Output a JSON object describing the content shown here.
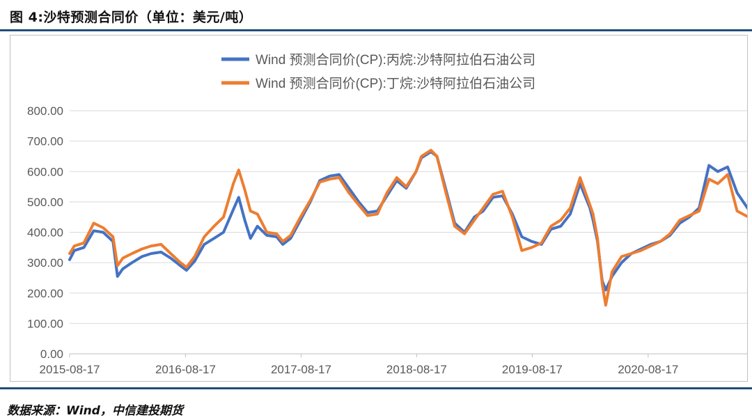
{
  "figure": {
    "title": "图 4:沙特预测合同价（单位：美元/吨）",
    "source": "数据来源：Wind，中信建投期货"
  },
  "colors": {
    "propane": "#4472c4",
    "butane": "#ed7d31",
    "grid": "#d9d9d9",
    "axis_text": "#595959",
    "rule": "#1f4e79"
  },
  "chart_data": {
    "type": "line",
    "title": "",
    "xlabel": "",
    "ylabel": "",
    "ylim": [
      0,
      800
    ],
    "yticks": [
      "800.00",
      "700.00",
      "600.00",
      "500.00",
      "400.00",
      "300.00",
      "200.00",
      "100.00",
      "0.00"
    ],
    "xticks": [
      "2015-08-17",
      "2016-08-17",
      "2017-08-17",
      "2018-08-17",
      "2019-08-17",
      "2020-08-17"
    ],
    "x_range": [
      "2015-08-17",
      "2021-06-30"
    ],
    "grid": "horizontal",
    "legend_position": "top",
    "series": [
      {
        "name": "Wind 预测合同价(CP):丙烷:沙特阿拉伯石油公司",
        "color": "#4472c4",
        "points": [
          [
            "2015-08-17",
            310
          ],
          [
            "2015-09-01",
            340
          ],
          [
            "2015-10-01",
            350
          ],
          [
            "2015-11-01",
            405
          ],
          [
            "2015-12-01",
            400
          ],
          [
            "2016-01-01",
            370
          ],
          [
            "2016-01-15",
            255
          ],
          [
            "2016-02-01",
            280
          ],
          [
            "2016-03-01",
            300
          ],
          [
            "2016-04-01",
            320
          ],
          [
            "2016-05-01",
            330
          ],
          [
            "2016-06-01",
            335
          ],
          [
            "2016-07-01",
            315
          ],
          [
            "2016-08-01",
            290
          ],
          [
            "2016-08-20",
            275
          ],
          [
            "2016-09-15",
            305
          ],
          [
            "2016-10-15",
            360
          ],
          [
            "2016-11-15",
            380
          ],
          [
            "2016-12-15",
            400
          ],
          [
            "2017-01-15",
            475
          ],
          [
            "2017-02-01",
            515
          ],
          [
            "2017-02-20",
            440
          ],
          [
            "2017-03-10",
            380
          ],
          [
            "2017-04-01",
            420
          ],
          [
            "2017-05-01",
            390
          ],
          [
            "2017-06-01",
            385
          ],
          [
            "2017-06-20",
            360
          ],
          [
            "2017-07-15",
            380
          ],
          [
            "2017-08-15",
            440
          ],
          [
            "2017-09-15",
            500
          ],
          [
            "2017-10-15",
            570
          ],
          [
            "2017-11-15",
            585
          ],
          [
            "2017-12-15",
            590
          ],
          [
            "2018-01-15",
            545
          ],
          [
            "2018-02-15",
            500
          ],
          [
            "2018-03-15",
            465
          ],
          [
            "2018-04-15",
            470
          ],
          [
            "2018-05-15",
            520
          ],
          [
            "2018-06-15",
            570
          ],
          [
            "2018-07-15",
            545
          ],
          [
            "2018-08-15",
            600
          ],
          [
            "2018-09-01",
            645
          ],
          [
            "2018-10-01",
            665
          ],
          [
            "2018-10-20",
            650
          ],
          [
            "2018-11-15",
            550
          ],
          [
            "2018-12-15",
            430
          ],
          [
            "2019-01-15",
            400
          ],
          [
            "2019-02-15",
            450
          ],
          [
            "2019-03-15",
            470
          ],
          [
            "2019-04-15",
            515
          ],
          [
            "2019-05-15",
            520
          ],
          [
            "2019-06-15",
            460
          ],
          [
            "2019-07-15",
            385
          ],
          [
            "2019-08-15",
            370
          ],
          [
            "2019-09-15",
            360
          ],
          [
            "2019-10-15",
            410
          ],
          [
            "2019-11-15",
            420
          ],
          [
            "2019-12-15",
            460
          ],
          [
            "2020-01-15",
            560
          ],
          [
            "2020-02-15",
            480
          ],
          [
            "2020-02-25",
            440
          ],
          [
            "2020-03-10",
            370
          ],
          [
            "2020-03-25",
            240
          ],
          [
            "2020-04-05",
            210
          ],
          [
            "2020-04-25",
            255
          ],
          [
            "2020-05-25",
            300
          ],
          [
            "2020-06-25",
            330
          ],
          [
            "2020-07-25",
            345
          ],
          [
            "2020-08-25",
            360
          ],
          [
            "2020-09-25",
            370
          ],
          [
            "2020-10-25",
            390
          ],
          [
            "2020-11-25",
            430
          ],
          [
            "2020-12-25",
            450
          ],
          [
            "2021-01-25",
            480
          ],
          [
            "2021-02-25",
            620
          ],
          [
            "2021-03-25",
            600
          ],
          [
            "2021-04-25",
            615
          ],
          [
            "2021-05-25",
            530
          ],
          [
            "2021-06-30",
            475
          ]
        ]
      },
      {
        "name": "Wind 预测合同价(CP):丁烷:沙特阿拉伯石油公司",
        "color": "#ed7d31",
        "points": [
          [
            "2015-08-17",
            330
          ],
          [
            "2015-09-01",
            355
          ],
          [
            "2015-10-01",
            365
          ],
          [
            "2015-11-01",
            430
          ],
          [
            "2015-12-01",
            415
          ],
          [
            "2016-01-01",
            385
          ],
          [
            "2016-01-15",
            290
          ],
          [
            "2016-02-01",
            315
          ],
          [
            "2016-03-01",
            330
          ],
          [
            "2016-04-01",
            345
          ],
          [
            "2016-05-01",
            355
          ],
          [
            "2016-06-01",
            360
          ],
          [
            "2016-07-01",
            330
          ],
          [
            "2016-08-01",
            300
          ],
          [
            "2016-08-20",
            285
          ],
          [
            "2016-09-15",
            320
          ],
          [
            "2016-10-15",
            385
          ],
          [
            "2016-11-15",
            420
          ],
          [
            "2016-12-15",
            450
          ],
          [
            "2017-01-15",
            560
          ],
          [
            "2017-02-01",
            605
          ],
          [
            "2017-02-20",
            540
          ],
          [
            "2017-03-10",
            470
          ],
          [
            "2017-04-01",
            460
          ],
          [
            "2017-05-01",
            400
          ],
          [
            "2017-06-01",
            395
          ],
          [
            "2017-06-20",
            370
          ],
          [
            "2017-07-15",
            390
          ],
          [
            "2017-08-15",
            450
          ],
          [
            "2017-09-15",
            505
          ],
          [
            "2017-10-15",
            565
          ],
          [
            "2017-11-15",
            575
          ],
          [
            "2017-12-15",
            580
          ],
          [
            "2018-01-15",
            530
          ],
          [
            "2018-02-15",
            490
          ],
          [
            "2018-03-15",
            455
          ],
          [
            "2018-04-15",
            460
          ],
          [
            "2018-05-15",
            530
          ],
          [
            "2018-06-15",
            580
          ],
          [
            "2018-07-15",
            550
          ],
          [
            "2018-08-15",
            600
          ],
          [
            "2018-09-01",
            650
          ],
          [
            "2018-10-01",
            670
          ],
          [
            "2018-10-20",
            650
          ],
          [
            "2018-11-15",
            540
          ],
          [
            "2018-12-15",
            420
          ],
          [
            "2019-01-15",
            395
          ],
          [
            "2019-02-15",
            440
          ],
          [
            "2019-03-15",
            480
          ],
          [
            "2019-04-15",
            525
          ],
          [
            "2019-05-15",
            535
          ],
          [
            "2019-06-15",
            450
          ],
          [
            "2019-07-15",
            340
          ],
          [
            "2019-08-15",
            350
          ],
          [
            "2019-09-15",
            365
          ],
          [
            "2019-10-15",
            420
          ],
          [
            "2019-11-15",
            440
          ],
          [
            "2019-12-15",
            480
          ],
          [
            "2020-01-15",
            580
          ],
          [
            "2020-02-15",
            490
          ],
          [
            "2020-02-25",
            460
          ],
          [
            "2020-03-10",
            380
          ],
          [
            "2020-03-25",
            230
          ],
          [
            "2020-04-05",
            160
          ],
          [
            "2020-04-25",
            270
          ],
          [
            "2020-05-25",
            320
          ],
          [
            "2020-06-25",
            330
          ],
          [
            "2020-07-25",
            340
          ],
          [
            "2020-08-25",
            355
          ],
          [
            "2020-09-25",
            370
          ],
          [
            "2020-10-25",
            395
          ],
          [
            "2020-11-25",
            440
          ],
          [
            "2020-12-25",
            455
          ],
          [
            "2021-01-25",
            470
          ],
          [
            "2021-02-25",
            575
          ],
          [
            "2021-03-25",
            560
          ],
          [
            "2021-04-25",
            590
          ],
          [
            "2021-05-25",
            470
          ],
          [
            "2021-06-30",
            450
          ]
        ]
      }
    ]
  }
}
